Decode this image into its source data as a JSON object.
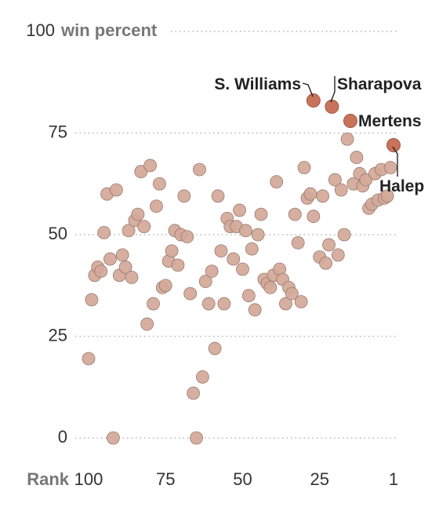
{
  "chart_data": {
    "type": "scatter",
    "xlabel": "Rank",
    "ylabel_unit": "win percent",
    "xlim": [
      105,
      1
    ],
    "ylim": [
      0,
      100
    ],
    "x_ticks": [
      100,
      75,
      50,
      25,
      1
    ],
    "y_ticks": [
      0,
      25,
      50,
      75,
      100
    ],
    "grid": true,
    "colors": {
      "point": "#d2a898",
      "highlight": "#c8735a",
      "grid": "#b5b5b5",
      "text": "#333333"
    },
    "points": [
      {
        "x": 100,
        "y": 19.5
      },
      {
        "x": 99,
        "y": 34
      },
      {
        "x": 98,
        "y": 40
      },
      {
        "x": 97,
        "y": 42
      },
      {
        "x": 96,
        "y": 41
      },
      {
        "x": 95,
        "y": 50.5
      },
      {
        "x": 94,
        "y": 60
      },
      {
        "x": 93,
        "y": 44
      },
      {
        "x": 92,
        "y": 0
      },
      {
        "x": 91,
        "y": 61
      },
      {
        "x": 90,
        "y": 40
      },
      {
        "x": 89,
        "y": 45
      },
      {
        "x": 88,
        "y": 42
      },
      {
        "x": 87,
        "y": 51
      },
      {
        "x": 86,
        "y": 39.5
      },
      {
        "x": 85,
        "y": 53.5
      },
      {
        "x": 84,
        "y": 55
      },
      {
        "x": 83,
        "y": 65.5
      },
      {
        "x": 82,
        "y": 52
      },
      {
        "x": 81,
        "y": 28
      },
      {
        "x": 80,
        "y": 67
      },
      {
        "x": 79,
        "y": 33
      },
      {
        "x": 78,
        "y": 57
      },
      {
        "x": 77,
        "y": 62.5
      },
      {
        "x": 76,
        "y": 37
      },
      {
        "x": 75,
        "y": 37.5
      },
      {
        "x": 74,
        "y": 43.5
      },
      {
        "x": 73,
        "y": 46
      },
      {
        "x": 72,
        "y": 51
      },
      {
        "x": 71,
        "y": 42.5
      },
      {
        "x": 70,
        "y": 50
      },
      {
        "x": 69,
        "y": 59.5
      },
      {
        "x": 68,
        "y": 49.5
      },
      {
        "x": 67,
        "y": 35.5
      },
      {
        "x": 66,
        "y": 11
      },
      {
        "x": 65,
        "y": 0
      },
      {
        "x": 64,
        "y": 66
      },
      {
        "x": 63,
        "y": 15
      },
      {
        "x": 62,
        "y": 38.5
      },
      {
        "x": 61,
        "y": 33
      },
      {
        "x": 60,
        "y": 41
      },
      {
        "x": 59,
        "y": 22
      },
      {
        "x": 58,
        "y": 59.5
      },
      {
        "x": 57,
        "y": 46
      },
      {
        "x": 56,
        "y": 33
      },
      {
        "x": 55,
        "y": 54
      },
      {
        "x": 54,
        "y": 52
      },
      {
        "x": 53,
        "y": 44
      },
      {
        "x": 52,
        "y": 52
      },
      {
        "x": 51,
        "y": 56
      },
      {
        "x": 50,
        "y": 41.5
      },
      {
        "x": 49,
        "y": 51
      },
      {
        "x": 48,
        "y": 35
      },
      {
        "x": 47,
        "y": 46.5
      },
      {
        "x": 46,
        "y": 31.5
      },
      {
        "x": 45,
        "y": 50
      },
      {
        "x": 44,
        "y": 55
      },
      {
        "x": 43,
        "y": 39
      },
      {
        "x": 42,
        "y": 38
      },
      {
        "x": 41,
        "y": 37
      },
      {
        "x": 40,
        "y": 40
      },
      {
        "x": 39,
        "y": 63
      },
      {
        "x": 38,
        "y": 41.5
      },
      {
        "x": 37,
        "y": 39
      },
      {
        "x": 36,
        "y": 33
      },
      {
        "x": 35,
        "y": 37
      },
      {
        "x": 34,
        "y": 35.5
      },
      {
        "x": 33,
        "y": 55
      },
      {
        "x": 32,
        "y": 48
      },
      {
        "x": 31,
        "y": 33.5
      },
      {
        "x": 30,
        "y": 66.5
      },
      {
        "x": 29,
        "y": 59
      },
      {
        "x": 28,
        "y": 60
      },
      {
        "x": 27,
        "y": 54.5
      },
      {
        "x": 25,
        "y": 44.5
      },
      {
        "x": 24,
        "y": 59.5
      },
      {
        "x": 23,
        "y": 43
      },
      {
        "x": 22,
        "y": 47.5
      },
      {
        "x": 20,
        "y": 63.5
      },
      {
        "x": 19,
        "y": 45
      },
      {
        "x": 18,
        "y": 61
      },
      {
        "x": 17,
        "y": 50
      },
      {
        "x": 16,
        "y": 73.5
      },
      {
        "x": 14,
        "y": 62.5
      },
      {
        "x": 13,
        "y": 69
      },
      {
        "x": 12,
        "y": 65
      },
      {
        "x": 11,
        "y": 62
      },
      {
        "x": 10,
        "y": 63.5
      },
      {
        "x": 9,
        "y": 56.5
      },
      {
        "x": 8,
        "y": 57.5
      },
      {
        "x": 7,
        "y": 65
      },
      {
        "x": 6,
        "y": 58.5
      },
      {
        "x": 5,
        "y": 66
      },
      {
        "x": 4,
        "y": 59
      },
      {
        "x": 3,
        "y": 59.5
      },
      {
        "x": 2,
        "y": 66.5
      }
    ],
    "highlighted": [
      {
        "name": "S. Williams",
        "x": 27,
        "y": 83
      },
      {
        "name": "Sharapova",
        "x": 21,
        "y": 81.5
      },
      {
        "name": "Mertens",
        "x": 15,
        "y": 78
      },
      {
        "name": "Halep",
        "x": 1,
        "y": 72
      }
    ]
  }
}
